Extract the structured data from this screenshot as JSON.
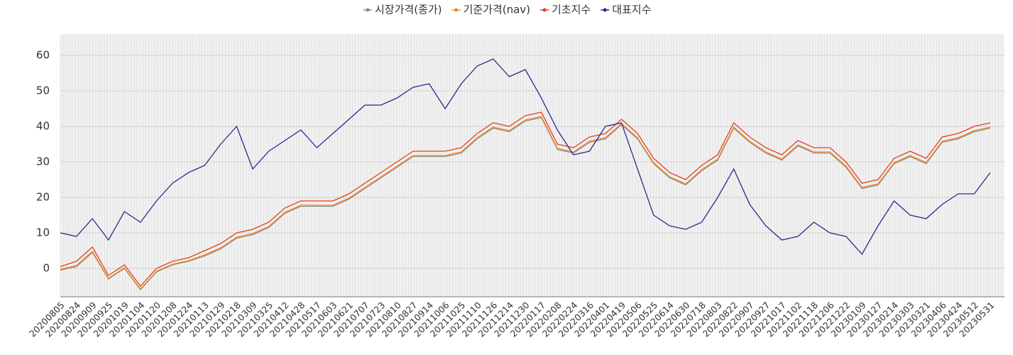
{
  "chart_data": {
    "type": "line",
    "categories": [
      "20200805",
      "20200824",
      "20200909",
      "20200925",
      "20201019",
      "20201104",
      "20201120",
      "20201208",
      "20201224",
      "20210113",
      "20210129",
      "20210218",
      "20210309",
      "20210325",
      "20210412",
      "20210428",
      "20210517",
      "20210603",
      "20210621",
      "20210707",
      "20210723",
      "20210810",
      "20210827",
      "20210914",
      "20211006",
      "20211025",
      "20211110",
      "20211126",
      "20211214",
      "20211230",
      "20220117",
      "20220208",
      "20220224",
      "20220316",
      "20220401",
      "20220419",
      "20220506",
      "20220525",
      "20220614",
      "20220630",
      "20220718",
      "20220803",
      "20220822",
      "20220907",
      "20220927",
      "20221017",
      "20221102",
      "20221118",
      "20221206",
      "20221222",
      "20230109",
      "20230127",
      "20230214",
      "20230303",
      "20230321",
      "20230406",
      "20230424",
      "20230512",
      "20230531"
    ],
    "series": [
      {
        "name": "시장가격(종가)",
        "color": "#8c8c8c",
        "values": [
          -0.5,
          0.5,
          4.5,
          -3,
          0,
          -6,
          -1,
          1,
          2,
          3.5,
          5.5,
          8.5,
          9.5,
          11.5,
          15.5,
          17.5,
          17.5,
          17.5,
          19.5,
          22.5,
          25.5,
          28.5,
          31.5,
          31.5,
          31.5,
          32.5,
          36.5,
          39.5,
          38.5,
          41.5,
          42.5,
          33.5,
          32.5,
          35.5,
          36.5,
          40.5,
          36.5,
          29.5,
          25.5,
          23.5,
          27.5,
          30.5,
          39.5,
          35.5,
          32.5,
          30.5,
          34.5,
          32.5,
          32.5,
          28.5,
          22.5,
          23.5,
          29.5,
          31.5,
          29.5,
          35.5,
          36.5,
          38.5,
          39.5
        ]
      },
      {
        "name": "기준가격(nav)",
        "color": "#f08a24",
        "values": [
          -0.2,
          0.8,
          4.8,
          -2.8,
          0.2,
          -5.8,
          -0.8,
          1.2,
          2.2,
          3.8,
          5.8,
          8.8,
          9.8,
          11.8,
          15.8,
          17.8,
          17.8,
          17.8,
          19.8,
          22.8,
          25.8,
          28.8,
          31.8,
          31.8,
          31.8,
          32.8,
          36.8,
          39.8,
          38.8,
          41.8,
          42.8,
          33.8,
          32.8,
          35.8,
          36.8,
          40.8,
          36.8,
          29.8,
          25.8,
          23.8,
          27.8,
          30.8,
          39.8,
          35.8,
          32.8,
          30.8,
          34.8,
          32.8,
          32.8,
          28.8,
          22.8,
          23.8,
          29.8,
          31.8,
          29.8,
          35.8,
          36.8,
          38.8,
          39.8
        ]
      },
      {
        "name": "기초지수",
        "color": "#e2401c",
        "values": [
          0.5,
          2,
          6,
          -2,
          1,
          -5,
          0,
          2,
          3,
          5,
          7,
          10,
          11,
          13,
          17,
          19,
          19,
          19,
          21,
          24,
          27,
          30,
          33,
          33,
          33,
          34,
          38,
          41,
          40,
          43,
          44,
          35,
          34,
          37,
          38,
          42,
          38,
          31,
          27,
          25,
          29,
          32,
          41,
          37,
          34,
          32,
          36,
          34,
          34,
          30,
          24,
          25,
          31,
          33,
          31,
          37,
          38,
          40,
          41
        ]
      },
      {
        "name": "대표지수",
        "color": "#2b2a8e",
        "values": [
          10,
          9,
          14,
          8,
          16,
          13,
          19,
          24,
          27,
          29,
          35,
          40,
          28,
          33,
          36,
          39,
          34,
          38,
          42,
          46,
          46,
          48,
          51,
          52,
          45,
          52,
          57,
          59,
          54,
          56,
          48,
          39,
          32,
          33,
          40,
          41,
          28,
          15,
          12,
          11,
          13,
          20,
          28,
          18,
          12,
          8,
          9,
          13,
          10,
          9,
          4,
          12,
          19,
          15,
          14,
          18,
          21,
          21,
          27
        ]
      }
    ],
    "ylim": [
      -8,
      66
    ],
    "yticks": [
      0,
      10,
      20,
      30,
      40,
      50,
      60
    ],
    "grid": true,
    "legend": "top"
  }
}
